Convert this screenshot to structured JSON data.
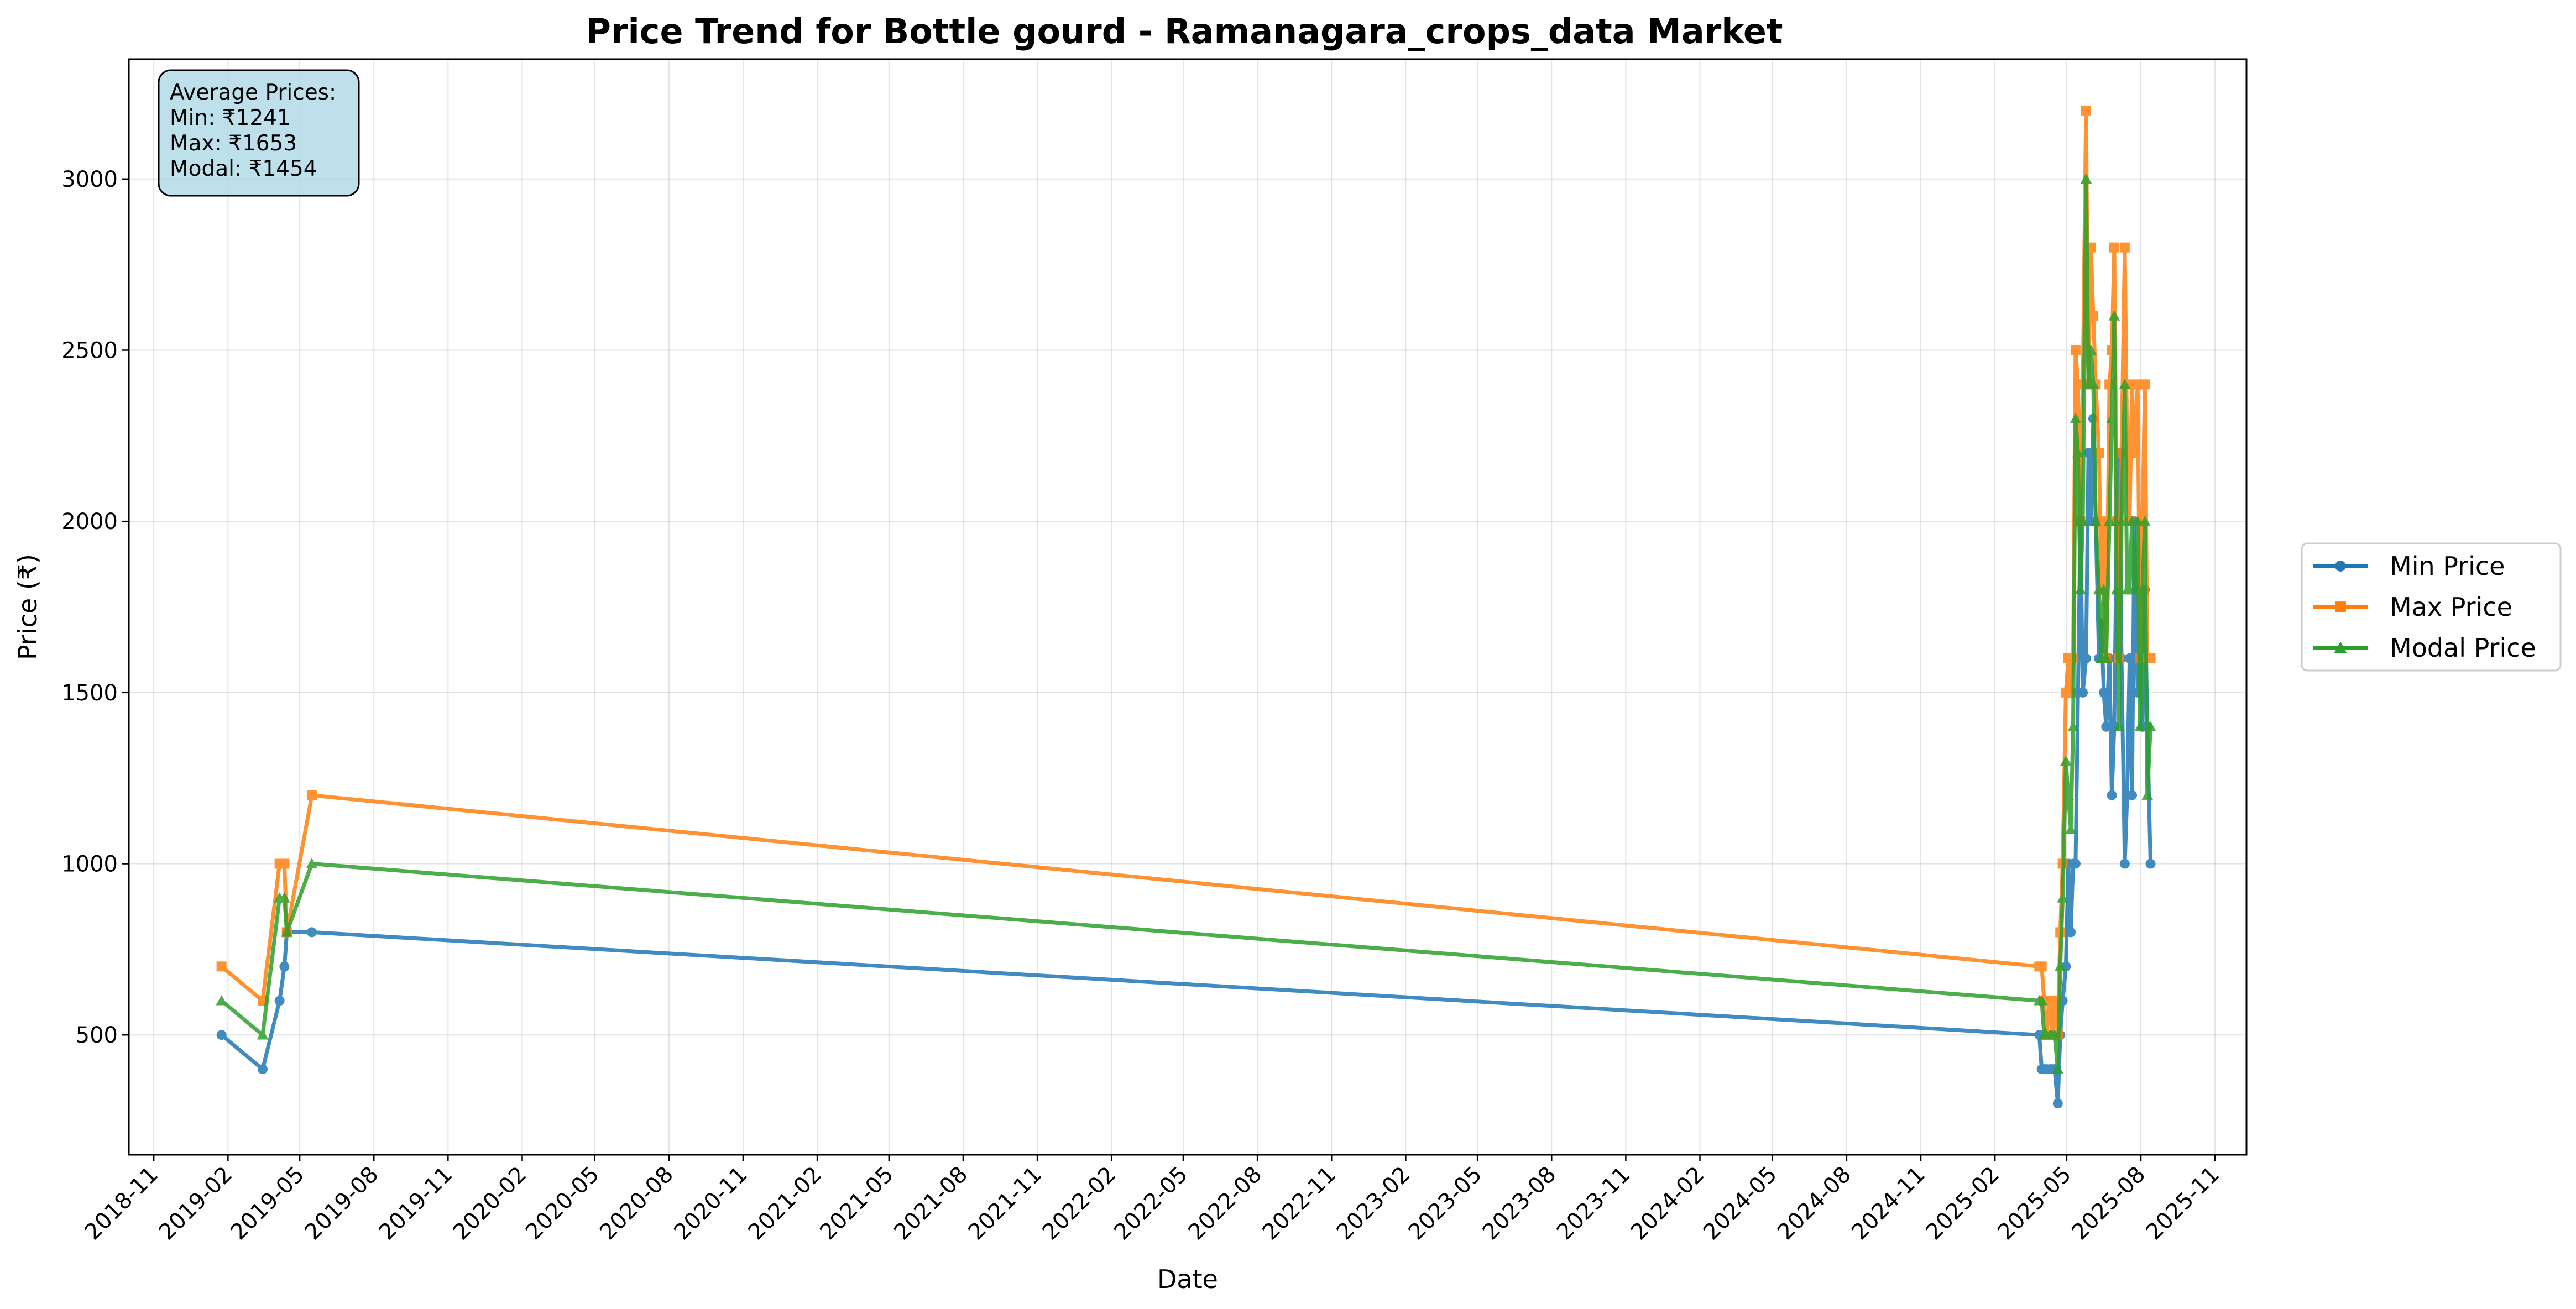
{
  "chart_data": {
    "type": "line",
    "title": "Price Trend for Bottle gourd - Ramanagara_crops_data Market",
    "xlabel": "Date",
    "ylabel": "Price (₹)",
    "xlim": [
      "2018-10-01",
      "2025-12-10"
    ],
    "ylim": [
      150,
      3350
    ],
    "x_ticks": [
      "2018-11",
      "2019-02",
      "2019-05",
      "2019-08",
      "2019-11",
      "2020-02",
      "2020-05",
      "2020-08",
      "2020-11",
      "2021-02",
      "2021-05",
      "2021-08",
      "2021-11",
      "2022-02",
      "2022-05",
      "2022-08",
      "2022-11",
      "2023-02",
      "2023-05",
      "2023-08",
      "2023-11",
      "2024-02",
      "2024-05",
      "2024-08",
      "2024-11",
      "2025-02",
      "2025-05",
      "2025-08",
      "2025-11"
    ],
    "y_ticks": [
      500,
      1000,
      1500,
      2000,
      2500,
      3000
    ],
    "grid": true,
    "legend": {
      "placement": "outside-right"
    },
    "stats_box": {
      "lines": [
        "Average Prices:",
        "Min: ₹1241",
        "Max: ₹1653",
        "Modal: ₹1454"
      ],
      "background": "#add8e6"
    },
    "series": [
      {
        "name": "Min Price",
        "color": "#1f77b4",
        "marker": "circle",
        "points": [
          [
            "2019-01-24",
            500
          ],
          [
            "2019-03-16",
            400
          ],
          [
            "2019-04-06",
            600
          ],
          [
            "2019-04-12",
            700
          ],
          [
            "2019-04-15",
            800
          ],
          [
            "2019-05-16",
            800
          ],
          [
            "2025-03-28",
            500
          ],
          [
            "2025-03-31",
            400
          ],
          [
            "2025-04-03",
            400
          ],
          [
            "2025-04-06",
            400
          ],
          [
            "2025-04-10",
            400
          ],
          [
            "2025-04-13",
            400
          ],
          [
            "2025-04-16",
            400
          ],
          [
            "2025-04-20",
            300
          ],
          [
            "2025-04-23",
            500
          ],
          [
            "2025-04-26",
            600
          ],
          [
            "2025-04-30",
            700
          ],
          [
            "2025-05-03",
            1000
          ],
          [
            "2025-05-06",
            800
          ],
          [
            "2025-05-09",
            1000
          ],
          [
            "2025-05-12",
            1000
          ],
          [
            "2025-05-15",
            1500
          ],
          [
            "2025-05-18",
            2000
          ],
          [
            "2025-05-21",
            1500
          ],
          [
            "2025-05-25",
            1600
          ],
          [
            "2025-05-28",
            2200
          ],
          [
            "2025-05-31",
            2000
          ],
          [
            "2025-06-03",
            2300
          ],
          [
            "2025-06-06",
            2000
          ],
          [
            "2025-06-10",
            1600
          ],
          [
            "2025-06-13",
            1700
          ],
          [
            "2025-06-16",
            1500
          ],
          [
            "2025-06-19",
            1400
          ],
          [
            "2025-06-23",
            1600
          ],
          [
            "2025-06-26",
            1200
          ],
          [
            "2025-06-29",
            1400
          ],
          [
            "2025-07-02",
            2000
          ],
          [
            "2025-07-05",
            2200
          ],
          [
            "2025-07-08",
            1600
          ],
          [
            "2025-07-12",
            1000
          ],
          [
            "2025-07-15",
            1200
          ],
          [
            "2025-07-18",
            1600
          ],
          [
            "2025-07-21",
            1200
          ],
          [
            "2025-07-24",
            2000
          ],
          [
            "2025-07-28",
            1500
          ],
          [
            "2025-07-31",
            1600
          ],
          [
            "2025-08-03",
            1400
          ],
          [
            "2025-08-06",
            1800
          ],
          [
            "2025-08-09",
            1400
          ],
          [
            "2025-08-13",
            1000
          ]
        ]
      },
      {
        "name": "Max Price",
        "color": "#ff7f0e",
        "marker": "square",
        "points": [
          [
            "2019-01-24",
            700
          ],
          [
            "2019-03-16",
            600
          ],
          [
            "2019-04-06",
            1000
          ],
          [
            "2019-04-12",
            1000
          ],
          [
            "2019-04-15",
            800
          ],
          [
            "2019-05-16",
            1200
          ],
          [
            "2025-03-28",
            700
          ],
          [
            "2025-03-31",
            700
          ],
          [
            "2025-04-03",
            600
          ],
          [
            "2025-04-06",
            500
          ],
          [
            "2025-04-10",
            600
          ],
          [
            "2025-04-13",
            500
          ],
          [
            "2025-04-16",
            600
          ],
          [
            "2025-04-20",
            500
          ],
          [
            "2025-04-23",
            800
          ],
          [
            "2025-04-26",
            1000
          ],
          [
            "2025-04-30",
            1500
          ],
          [
            "2025-05-03",
            1600
          ],
          [
            "2025-05-06",
            1500
          ],
          [
            "2025-05-09",
            1600
          ],
          [
            "2025-05-12",
            2500
          ],
          [
            "2025-05-15",
            2400
          ],
          [
            "2025-05-18",
            2000
          ],
          [
            "2025-05-21",
            2400
          ],
          [
            "2025-05-25",
            3200
          ],
          [
            "2025-05-28",
            2400
          ],
          [
            "2025-05-31",
            2800
          ],
          [
            "2025-06-03",
            2600
          ],
          [
            "2025-06-06",
            2400
          ],
          [
            "2025-06-10",
            2200
          ],
          [
            "2025-06-13",
            1800
          ],
          [
            "2025-06-16",
            2000
          ],
          [
            "2025-06-19",
            1600
          ],
          [
            "2025-06-23",
            2400
          ],
          [
            "2025-06-26",
            2500
          ],
          [
            "2025-06-29",
            2800
          ],
          [
            "2025-07-02",
            2000
          ],
          [
            "2025-07-05",
            1600
          ],
          [
            "2025-07-08",
            2200
          ],
          [
            "2025-07-12",
            2800
          ],
          [
            "2025-07-15",
            2200
          ],
          [
            "2025-07-18",
            2000
          ],
          [
            "2025-07-21",
            2400
          ],
          [
            "2025-07-24",
            2200
          ],
          [
            "2025-07-28",
            2400
          ],
          [
            "2025-07-31",
            1600
          ],
          [
            "2025-08-03",
            2000
          ],
          [
            "2025-08-06",
            2400
          ],
          [
            "2025-08-09",
            1600
          ],
          [
            "2025-08-13",
            1600
          ]
        ]
      },
      {
        "name": "Modal Price",
        "color": "#2ca02c",
        "marker": "triangle",
        "points": [
          [
            "2019-01-24",
            600
          ],
          [
            "2019-03-16",
            500
          ],
          [
            "2019-04-06",
            900
          ],
          [
            "2019-04-12",
            900
          ],
          [
            "2019-04-15",
            800
          ],
          [
            "2019-05-16",
            1000
          ],
          [
            "2025-03-28",
            600
          ],
          [
            "2025-03-31",
            600
          ],
          [
            "2025-04-03",
            500
          ],
          [
            "2025-04-06",
            500
          ],
          [
            "2025-04-10",
            500
          ],
          [
            "2025-04-13",
            500
          ],
          [
            "2025-04-16",
            500
          ],
          [
            "2025-04-20",
            400
          ],
          [
            "2025-04-23",
            700
          ],
          [
            "2025-04-26",
            900
          ],
          [
            "2025-04-30",
            1300
          ],
          [
            "2025-05-03",
            1200
          ],
          [
            "2025-05-06",
            1100
          ],
          [
            "2025-05-09",
            1400
          ],
          [
            "2025-05-12",
            2300
          ],
          [
            "2025-05-15",
            2200
          ],
          [
            "2025-05-18",
            1800
          ],
          [
            "2025-05-21",
            2000
          ],
          [
            "2025-05-25",
            3000
          ],
          [
            "2025-05-28",
            2400
          ],
          [
            "2025-05-31",
            2500
          ],
          [
            "2025-06-03",
            2400
          ],
          [
            "2025-06-06",
            2000
          ],
          [
            "2025-06-10",
            1800
          ],
          [
            "2025-06-13",
            1600
          ],
          [
            "2025-06-16",
            1800
          ],
          [
            "2025-06-19",
            1600
          ],
          [
            "2025-06-23",
            2000
          ],
          [
            "2025-06-26",
            2300
          ],
          [
            "2025-06-29",
            2600
          ],
          [
            "2025-07-02",
            1800
          ],
          [
            "2025-07-05",
            1400
          ],
          [
            "2025-07-08",
            2000
          ],
          [
            "2025-07-12",
            2400
          ],
          [
            "2025-07-15",
            1800
          ],
          [
            "2025-07-18",
            1800
          ],
          [
            "2025-07-21",
            2000
          ],
          [
            "2025-07-24",
            1800
          ],
          [
            "2025-07-28",
            2000
          ],
          [
            "2025-07-31",
            1400
          ],
          [
            "2025-08-03",
            1800
          ],
          [
            "2025-08-06",
            2000
          ],
          [
            "2025-08-09",
            1200
          ],
          [
            "2025-08-13",
            1400
          ]
        ]
      }
    ]
  }
}
